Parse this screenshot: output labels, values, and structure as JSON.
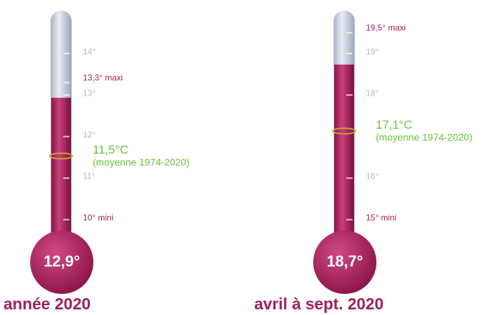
{
  "chart_data": [
    {
      "type": "thermometer",
      "title": "année 2020",
      "value": 12.9,
      "value_label": "12,9°",
      "color": "#b0245f",
      "ylim": [
        9.5,
        15
      ],
      "yticks": [
        {
          "value": 11,
          "label": "11°"
        },
        {
          "value": 12,
          "label": "12°"
        },
        {
          "value": 13,
          "label": "13°"
        },
        {
          "value": 14,
          "label": "14°"
        }
      ],
      "max": {
        "value": 13.3,
        "label": "13,3° maxi"
      },
      "min": {
        "value": 10,
        "label": "10° mini"
      },
      "average": {
        "value": 11.5,
        "label": "11,5°C",
        "note": "(moyenne 1974-2020)"
      }
    },
    {
      "type": "thermometer",
      "title": "avril à sept. 2020",
      "value": 18.7,
      "value_label": "18,7°",
      "color": "#b0245f",
      "ylim": [
        14.5,
        20
      ],
      "yticks": [
        {
          "value": 16,
          "label": "16°"
        },
        {
          "value": 18,
          "label": "18°"
        },
        {
          "value": 19,
          "label": "19°"
        }
      ],
      "max": {
        "value": 19.5,
        "label": "19,5° maxi"
      },
      "min": {
        "value": 15,
        "label": "15° mini"
      },
      "average": {
        "value": 17.1,
        "label": "17,1°C",
        "note": "(moyenne 1974-2020)"
      }
    }
  ]
}
